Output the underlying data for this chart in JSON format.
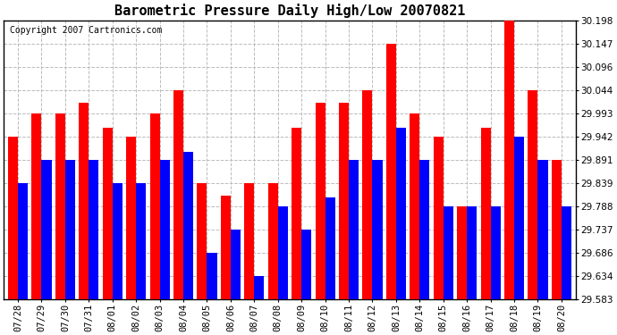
{
  "title": "Barometric Pressure Daily High/Low 20070821",
  "copyright": "Copyright 2007 Cartronics.com",
  "dates": [
    "07/28",
    "07/29",
    "07/30",
    "07/31",
    "08/01",
    "08/02",
    "08/03",
    "08/04",
    "08/05",
    "08/06",
    "08/07",
    "08/08",
    "08/09",
    "08/10",
    "08/11",
    "08/12",
    "08/13",
    "08/14",
    "08/15",
    "08/16",
    "08/17",
    "08/18",
    "08/19",
    "08/20"
  ],
  "highs": [
    29.942,
    29.993,
    29.993,
    30.017,
    29.962,
    29.942,
    29.993,
    30.044,
    29.839,
    29.811,
    29.839,
    29.839,
    29.962,
    30.017,
    30.017,
    30.044,
    30.147,
    29.993,
    29.942,
    29.788,
    29.962,
    30.198,
    30.044,
    29.891
  ],
  "lows": [
    29.839,
    29.891,
    29.891,
    29.891,
    29.839,
    29.839,
    29.891,
    29.908,
    29.686,
    29.737,
    29.634,
    29.788,
    29.737,
    29.808,
    29.891,
    29.891,
    29.962,
    29.891,
    29.788,
    29.788,
    29.788,
    29.942,
    29.891,
    29.788
  ],
  "high_color": "#FF0000",
  "low_color": "#0000FF",
  "bg_color": "#FFFFFF",
  "plot_bg_color": "#FFFFFF",
  "grid_color": "#BBBBBB",
  "ylim_min": 29.583,
  "ylim_max": 30.198,
  "ytick_values": [
    29.583,
    29.634,
    29.686,
    29.737,
    29.788,
    29.839,
    29.891,
    29.942,
    29.993,
    30.044,
    30.096,
    30.147,
    30.198
  ],
  "bar_width": 0.42,
  "title_fontsize": 11,
  "tick_fontsize": 7.5,
  "copyright_fontsize": 7
}
